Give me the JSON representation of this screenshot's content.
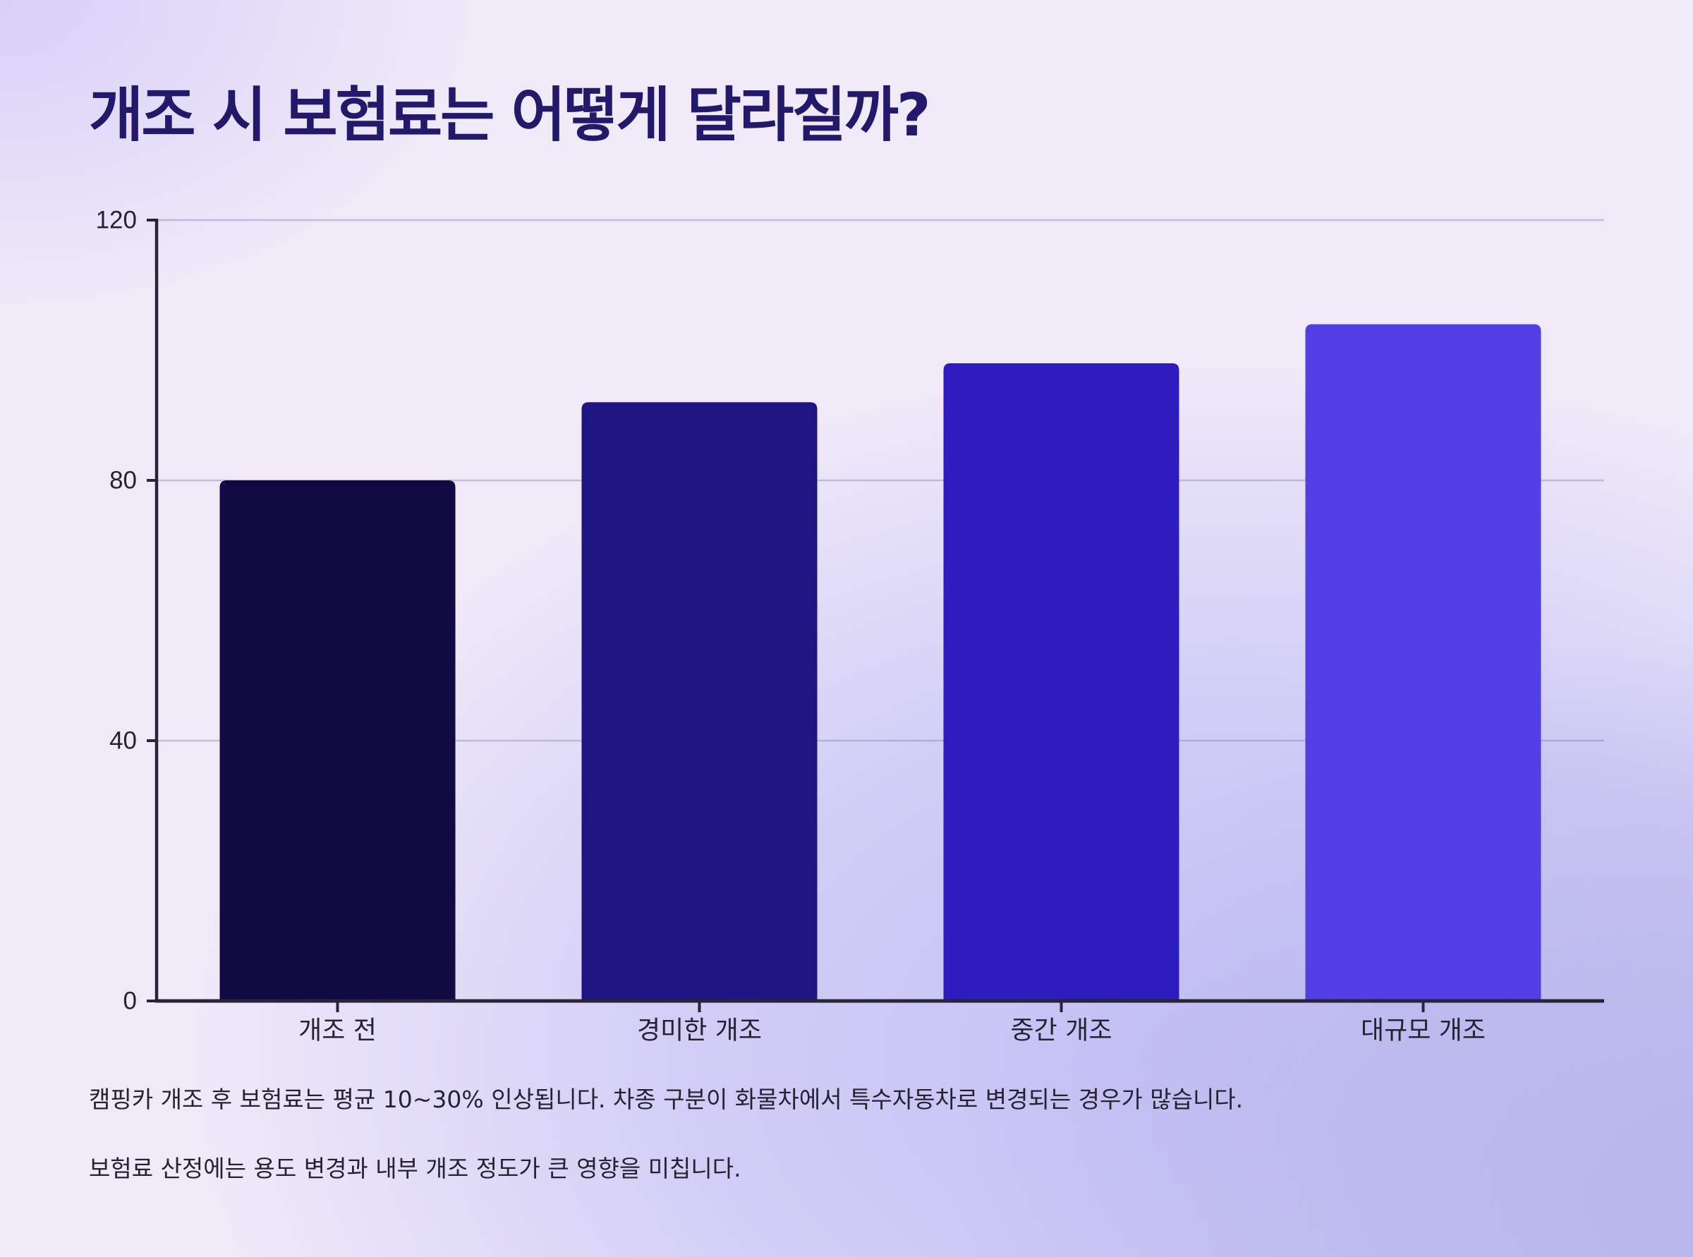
{
  "title": "개조 시 보험료는 어떻게 달라질까?",
  "chart_data": {
    "type": "bar",
    "categories": [
      "개조 전",
      "경미한 개조",
      "중간 개조",
      "대규모 개조"
    ],
    "values": [
      80,
      92,
      98,
      104
    ],
    "colors": [
      "#110a42",
      "#1f1582",
      "#2d1cbe",
      "#523ee2"
    ],
    "ylim": [
      0,
      120
    ],
    "yticks": [
      0,
      40,
      80,
      120
    ],
    "grid": true,
    "xlabel": "",
    "ylabel": ""
  },
  "notes": [
    "캠핑카 개조 후 보험료는 평균 10~30% 인상됩니다. 차종 구분이 화물차에서 특수자동차로 변경되는 경우가 많습니다.",
    "보험료 산정에는 용도 변경과 내부 개조 정도가 큰 영향을 미칩니다."
  ]
}
